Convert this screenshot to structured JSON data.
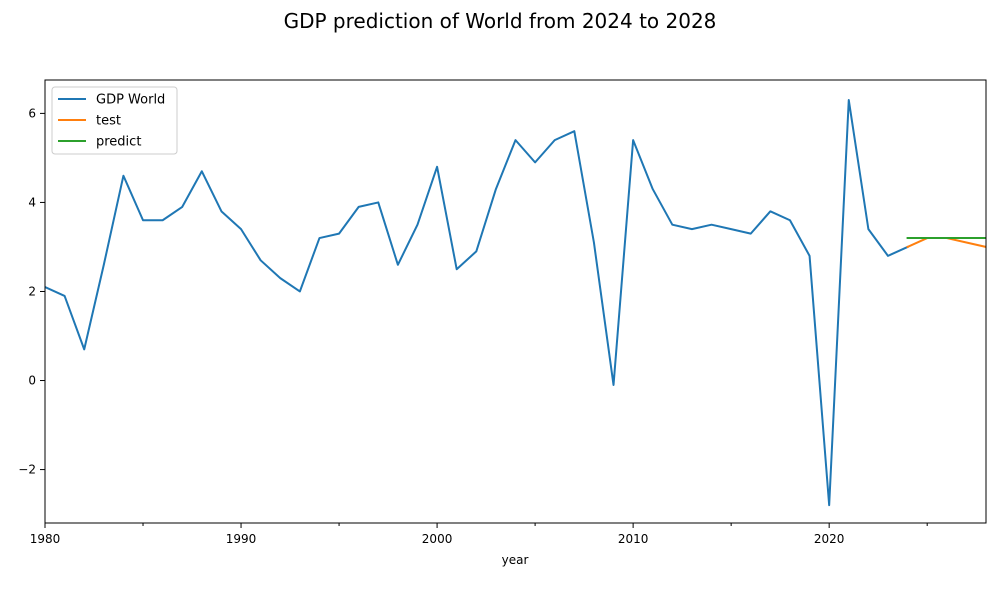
{
  "chart_data": {
    "type": "line",
    "title": "GDP prediction of World from 2024 to 2028",
    "xlabel": "year",
    "ylabel": "",
    "xlim": [
      1980,
      2028
    ],
    "ylim": [
      -3.2,
      6.75
    ],
    "x_ticks": [
      1980,
      1990,
      2000,
      2010,
      2020
    ],
    "x_minor_ticks": [
      1985,
      1995,
      2005,
      2015,
      2025
    ],
    "y_ticks": [
      -2,
      0,
      2,
      4,
      6
    ],
    "y_tick_labels": [
      "−2",
      "0",
      "2",
      "4",
      "6"
    ],
    "grid": false,
    "legend_position": "upper-left",
    "series": [
      {
        "name": "GDP World",
        "color": "#1f77b4",
        "x": [
          1980,
          1981,
          1982,
          1983,
          1984,
          1985,
          1986,
          1987,
          1988,
          1989,
          1990,
          1991,
          1992,
          1993,
          1994,
          1995,
          1996,
          1997,
          1998,
          1999,
          2000,
          2001,
          2002,
          2003,
          2004,
          2005,
          2006,
          2007,
          2008,
          2009,
          2010,
          2011,
          2012,
          2013,
          2014,
          2015,
          2016,
          2017,
          2018,
          2019,
          2020,
          2021,
          2022,
          2023,
          2024
        ],
        "values": [
          2.1,
          1.9,
          0.7,
          2.6,
          4.6,
          3.6,
          3.6,
          3.9,
          4.7,
          3.8,
          3.4,
          2.7,
          2.3,
          2.0,
          3.2,
          3.3,
          3.9,
          4.0,
          2.6,
          3.5,
          4.8,
          2.5,
          2.9,
          4.3,
          5.4,
          4.9,
          5.4,
          5.6,
          3.1,
          -0.1,
          5.4,
          4.3,
          3.5,
          3.4,
          3.5,
          3.4,
          3.3,
          3.8,
          3.6,
          2.8,
          -2.8,
          6.3,
          3.4,
          2.8,
          3.0
        ]
      },
      {
        "name": "test",
        "color": "#ff7f0e",
        "x": [
          2024,
          2025,
          2026,
          2027,
          2028
        ],
        "values": [
          3.0,
          3.2,
          3.2,
          3.1,
          3.0
        ]
      },
      {
        "name": "predict",
        "color": "#2ca02c",
        "x": [
          2024,
          2025,
          2026,
          2027,
          2028
        ],
        "values": [
          3.2,
          3.2,
          3.2,
          3.2,
          3.2
        ]
      }
    ]
  }
}
